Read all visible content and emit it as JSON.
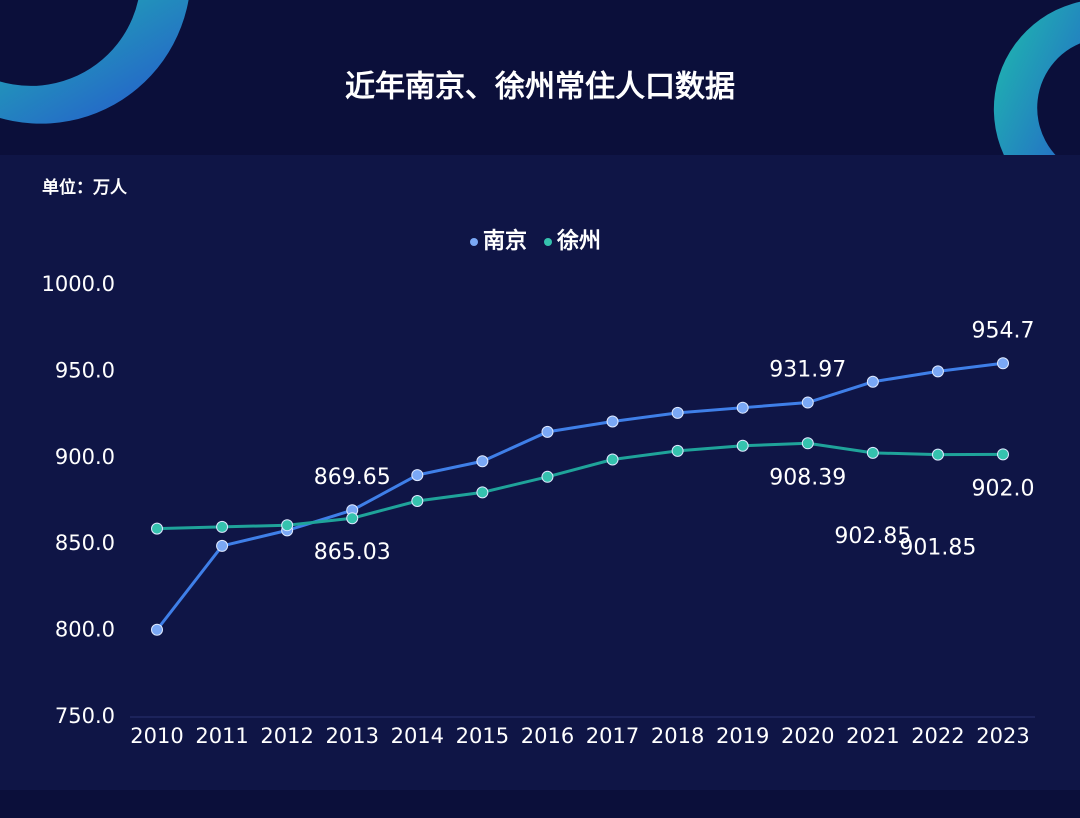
{
  "chart_data": {
    "type": "line",
    "title": "近年南京、徐州常住人口数据",
    "unit_label": "单位：万人",
    "categories": [
      "2010",
      "2011",
      "2012",
      "2013",
      "2014",
      "2015",
      "2016",
      "2017",
      "2018",
      "2019",
      "2020",
      "2021",
      "2022",
      "2023"
    ],
    "series": [
      {
        "name": "南京",
        "color": "#3f7fe8",
        "point_color": "#7aa8f5",
        "values": [
          800.5,
          849,
          858,
          869.65,
          890,
          898,
          915,
          921,
          926,
          929,
          931.97,
          944,
          950,
          954.7
        ],
        "value_labels": [
          null,
          null,
          null,
          "869.65",
          null,
          null,
          null,
          null,
          null,
          null,
          "931.97",
          null,
          null,
          "954.7"
        ]
      },
      {
        "name": "徐州",
        "color": "#1fa39a",
        "point_color": "#35c2ae",
        "values": [
          859,
          860,
          861,
          865.03,
          875,
          880,
          889,
          899,
          904,
          907,
          908.39,
          902.85,
          901.85,
          902.0
        ],
        "value_labels": [
          null,
          null,
          null,
          "865.03",
          null,
          null,
          null,
          null,
          null,
          null,
          "908.39",
          "902.85",
          "901.85",
          "902.0"
        ]
      }
    ],
    "ylim": [
      750,
      1000
    ],
    "yticks": [
      {
        "value": 750,
        "label": "750.0"
      },
      {
        "value": 800,
        "label": "800.0"
      },
      {
        "value": 850,
        "label": "850.0"
      },
      {
        "value": 900,
        "label": "900.0"
      },
      {
        "value": 950,
        "label": "950.0"
      },
      {
        "value": 1000,
        "label": "1000.0"
      }
    ],
    "grid": false,
    "legend": "top"
  }
}
